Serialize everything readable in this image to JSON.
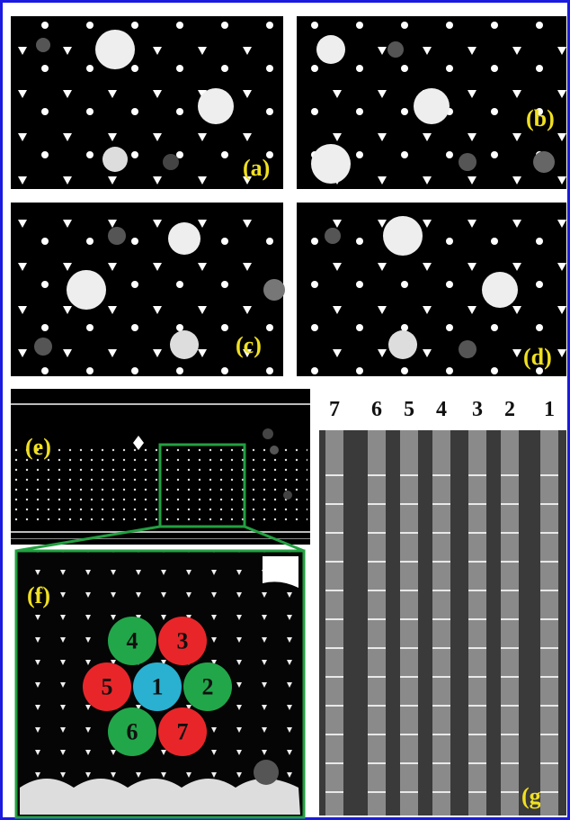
{
  "panels": {
    "a": "(a)",
    "b": "(b)",
    "c": "(c)",
    "d": "(d)",
    "e": "(e)",
    "f": "(f)",
    "g": "(g)"
  },
  "hexagon": {
    "cells": [
      {
        "label": "1",
        "color": "#2ab0d0"
      },
      {
        "label": "2",
        "color": "#22a64a"
      },
      {
        "label": "3",
        "color": "#e8262a"
      },
      {
        "label": "4",
        "color": "#22a64a"
      },
      {
        "label": "5",
        "color": "#e8262a"
      },
      {
        "label": "6",
        "color": "#22a64a"
      },
      {
        "label": "7",
        "color": "#e8262a"
      }
    ]
  },
  "columns": [
    "7",
    "6",
    "5",
    "4",
    "3",
    "2",
    "1"
  ]
}
